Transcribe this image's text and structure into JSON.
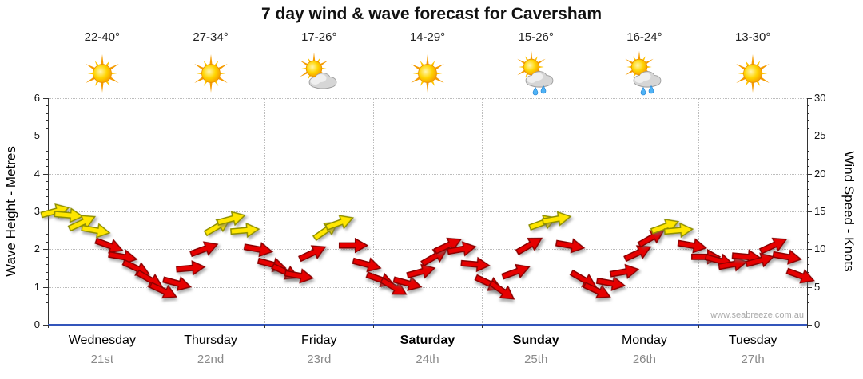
{
  "title": "7 day wind & wave forecast for Caversham",
  "watermark": "www.seabreeze.com.au",
  "left_axis": {
    "label": "Wave Height - Metres",
    "min": 0,
    "max": 6,
    "ticks": [
      0,
      1,
      2,
      3,
      4,
      5,
      6
    ]
  },
  "right_axis": {
    "label": "Wind Speed - Knots",
    "min": 0,
    "max": 30,
    "ticks": [
      0,
      5,
      10,
      15,
      20,
      25,
      30
    ]
  },
  "days": [
    {
      "name": "Wednesday",
      "date": "21st",
      "temp": "22-40°",
      "icon": "sun",
      "bold": false
    },
    {
      "name": "Thursday",
      "date": "22nd",
      "temp": "27-34°",
      "icon": "sun",
      "bold": false
    },
    {
      "name": "Friday",
      "date": "23rd",
      "temp": "17-26°",
      "icon": "sun-cloud",
      "bold": false
    },
    {
      "name": "Saturday",
      "date": "24th",
      "temp": "14-29°",
      "icon": "sun",
      "bold": true
    },
    {
      "name": "Sunday",
      "date": "25th",
      "temp": "15-26°",
      "icon": "sun-rain",
      "bold": true
    },
    {
      "name": "Monday",
      "date": "26th",
      "temp": "16-24°",
      "icon": "sun-rain",
      "bold": false
    },
    {
      "name": "Tuesday",
      "date": "27th",
      "temp": "13-30°",
      "icon": "sun",
      "bold": false
    }
  ],
  "colors": {
    "arrow_red": "#E60000",
    "arrow_red_outline": "#8B0000",
    "arrow_yellow": "#FFE600",
    "arrow_yellow_outline": "#8F8F00",
    "bottom_axis": "#3355BB",
    "grid": "#BCBCBC",
    "date_text": "#8A8A8A"
  },
  "chart_data": {
    "type": "wind-arrow-timeseries",
    "points_per_day": 8,
    "wave_axis_range": [
      0,
      6
    ],
    "wind_axis_range": [
      0,
      30
    ],
    "note_axis_mapping": "1 metre on left axis = 5 knots on right axis; arrow height encodes wind speed in knots",
    "series": [
      {
        "day": "Wednesday",
        "wind_knots": [
          15,
          14.5,
          13.5,
          12.5,
          10.5,
          9,
          7.5,
          6
        ],
        "rot_deg": [
          -15,
          5,
          -25,
          10,
          20,
          10,
          25,
          30
        ],
        "arrow_colors": [
          "yellow",
          "yellow",
          "yellow",
          "yellow",
          "red",
          "red",
          "red",
          "red"
        ]
      },
      {
        "day": "Thursday",
        "wind_knots": [
          4.5,
          5.5,
          7.5,
          10,
          13,
          14,
          12.5,
          10
        ],
        "rot_deg": [
          25,
          15,
          -5,
          -20,
          -30,
          -15,
          -5,
          10
        ],
        "arrow_colors": [
          "red",
          "red",
          "red",
          "red",
          "yellow",
          "yellow",
          "yellow",
          "red"
        ]
      },
      {
        "day": "Friday",
        "wind_knots": [
          8,
          7,
          6.5,
          9.5,
          12.5,
          13.5,
          10.5,
          8
        ],
        "rot_deg": [
          15,
          25,
          10,
          -25,
          -35,
          -20,
          0,
          15
        ],
        "arrow_colors": [
          "red",
          "red",
          "red",
          "red",
          "yellow",
          "yellow",
          "red",
          "red"
        ]
      },
      {
        "day": "Saturday",
        "wind_knots": [
          6,
          5,
          5.5,
          7,
          9,
          10.5,
          10,
          8
        ],
        "rot_deg": [
          20,
          30,
          15,
          -15,
          -30,
          -25,
          -10,
          5
        ],
        "arrow_colors": [
          "red",
          "red",
          "red",
          "red",
          "red",
          "red",
          "red",
          "red"
        ]
      },
      {
        "day": "Sunday",
        "wind_knots": [
          5.5,
          4.5,
          7,
          10.5,
          13.5,
          14,
          10.5,
          6
        ],
        "rot_deg": [
          25,
          35,
          -20,
          -30,
          -20,
          -10,
          10,
          30
        ],
        "arrow_colors": [
          "red",
          "red",
          "red",
          "red",
          "yellow",
          "yellow",
          "red",
          "red"
        ]
      },
      {
        "day": "Monday",
        "wind_knots": [
          4.5,
          5.5,
          7,
          9.5,
          11.5,
          13,
          12.5,
          10.5
        ],
        "rot_deg": [
          25,
          10,
          -10,
          -25,
          -30,
          -20,
          -5,
          10
        ],
        "arrow_colors": [
          "red",
          "red",
          "red",
          "red",
          "red",
          "yellow",
          "yellow",
          "red"
        ]
      },
      {
        "day": "Tuesday",
        "wind_knots": [
          9,
          8.5,
          8,
          9,
          8.5,
          10.5,
          9,
          6.5
        ],
        "rot_deg": [
          0,
          15,
          -10,
          5,
          -15,
          -25,
          10,
          20
        ],
        "arrow_colors": [
          "red",
          "red",
          "red",
          "red",
          "red",
          "red",
          "red",
          "red"
        ]
      }
    ]
  }
}
